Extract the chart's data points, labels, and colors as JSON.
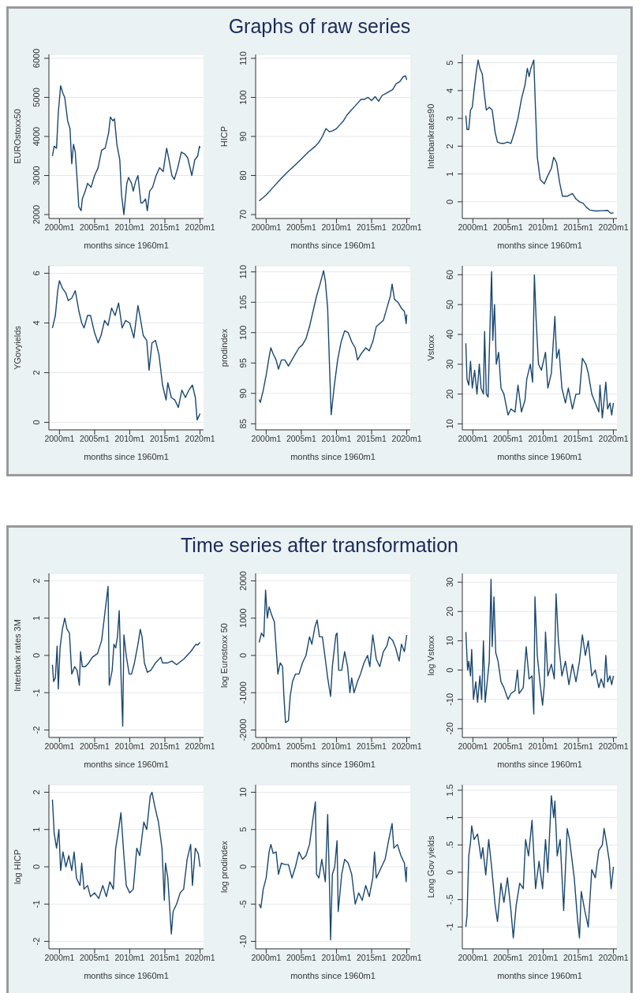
{
  "chart_data": [
    {
      "type": "line",
      "xlabel": "months since 1960m1",
      "ylabel": "EUROstoxx50",
      "color": "#1a476f",
      "grid": "y",
      "xlim": [
        "1998-07",
        "2020-07"
      ],
      "xticks": [
        {
          "value": "2000-01",
          "label": "2000m1"
        },
        {
          "value": "2005-01",
          "label": "2005m1"
        },
        {
          "value": "2010-01",
          "label": "2010m1"
        },
        {
          "value": "2015-01",
          "label": "2015m1"
        },
        {
          "value": "2020-01",
          "label": "2020m1"
        }
      ],
      "ylim": [
        1900,
        6100
      ],
      "yticks": [
        2000,
        3000,
        4000,
        5000,
        6000
      ],
      "x": [
        "1999-01",
        "1999-04",
        "1999-08",
        "1999-11",
        "2000-03",
        "2000-07",
        "2000-10",
        "2001-03",
        "2001-07",
        "2001-10",
        "2002-01",
        "2002-04",
        "2002-08",
        "2002-10",
        "2003-02",
        "2003-04",
        "2003-09",
        "2004-01",
        "2004-07",
        "2005-01",
        "2005-07",
        "2006-01",
        "2006-07",
        "2007-01",
        "2007-04",
        "2007-08",
        "2007-11",
        "2008-03",
        "2008-08",
        "2008-11",
        "2009-03",
        "2009-08",
        "2009-11",
        "2010-04",
        "2010-07",
        "2010-11",
        "2011-03",
        "2011-08",
        "2011-11",
        "2012-04",
        "2012-07",
        "2012-11",
        "2013-04",
        "2013-10",
        "2014-04",
        "2014-10",
        "2015-04",
        "2015-08",
        "2016-01",
        "2016-05",
        "2016-11",
        "2017-05",
        "2017-11",
        "2018-04",
        "2018-11",
        "2019-04",
        "2019-09",
        "2019-12",
        "2020-01"
      ],
      "values": [
        3500,
        3750,
        3700,
        4600,
        5300,
        5100,
        5000,
        4400,
        4200,
        3300,
        3800,
        3600,
        2700,
        2200,
        2100,
        2400,
        2600,
        2800,
        2700,
        3000,
        3200,
        3650,
        3700,
        4100,
        4500,
        4400,
        4450,
        3800,
        3400,
        2500,
        2000,
        2800,
        2950,
        2800,
        2600,
        2850,
        3000,
        2300,
        2300,
        2400,
        2100,
        2600,
        2700,
        3000,
        3200,
        3100,
        3700,
        3400,
        3000,
        2900,
        3200,
        3600,
        3550,
        3450,
        3000,
        3400,
        3500,
        3750,
        3700
      ]
    },
    {
      "type": "line",
      "title": "Graphs of raw series",
      "xlabel": "months since 1960m1",
      "ylabel": "HICP",
      "color": "#1a476f",
      "grid": "y",
      "xlim": [
        "1998-07",
        "2020-07"
      ],
      "xticks": [
        {
          "value": "2000-01",
          "label": "2000m1"
        },
        {
          "value": "2005-01",
          "label": "2005m1"
        },
        {
          "value": "2010-01",
          "label": "2010m1"
        },
        {
          "value": "2015-01",
          "label": "2015m1"
        },
        {
          "value": "2020-01",
          "label": "2020m1"
        }
      ],
      "ylim": [
        69,
        111
      ],
      "yticks": [
        70,
        80,
        90,
        100,
        110
      ],
      "x": [
        "1999-01",
        "2000-01",
        "2001-01",
        "2002-01",
        "2003-01",
        "2004-01",
        "2005-01",
        "2006-01",
        "2007-01",
        "2007-07",
        "2008-01",
        "2008-07",
        "2009-01",
        "2009-07",
        "2010-01",
        "2010-07",
        "2011-01",
        "2011-07",
        "2012-01",
        "2012-07",
        "2013-01",
        "2013-07",
        "2014-01",
        "2014-07",
        "2015-01",
        "2015-07",
        "2016-01",
        "2016-07",
        "2017-01",
        "2017-07",
        "2018-01",
        "2018-07",
        "2019-01",
        "2019-07",
        "2019-11",
        "2020-01"
      ],
      "values": [
        73.5,
        75,
        77,
        79,
        80.8,
        82.5,
        84.2,
        86,
        87.5,
        88.5,
        90,
        92,
        91.2,
        91.5,
        92,
        93,
        94,
        95.5,
        96.5,
        97.5,
        98.5,
        99.5,
        99.5,
        100,
        99.2,
        100.2,
        99,
        100.5,
        101,
        101.5,
        102,
        103.5,
        104,
        105.3,
        105.5,
        104.5
      ]
    },
    {
      "type": "line",
      "xlabel": "months since 1960m1",
      "ylabel": "Interbankrates90",
      "color": "#1a476f",
      "grid": "y",
      "xlim": [
        "1998-07",
        "2020-07"
      ],
      "xticks": [
        {
          "value": "2000-01",
          "label": "2000m1"
        },
        {
          "value": "2005-01",
          "label": "2005m1"
        },
        {
          "value": "2010-01",
          "label": "2010m1"
        },
        {
          "value": "2015-01",
          "label": "2015m1"
        },
        {
          "value": "2020-01",
          "label": "2020m1"
        }
      ],
      "ylim": [
        -0.6,
        5.3
      ],
      "yticks": [
        0,
        1,
        2,
        3,
        4,
        5
      ],
      "x": [
        "1999-01",
        "1999-03",
        "1999-06",
        "1999-09",
        "1999-12",
        "2000-03",
        "2000-07",
        "2000-10",
        "2001-01",
        "2001-05",
        "2001-09",
        "2001-12",
        "2002-05",
        "2002-10",
        "2003-03",
        "2003-07",
        "2004-01",
        "2004-06",
        "2004-12",
        "2005-06",
        "2005-12",
        "2006-06",
        "2006-12",
        "2007-06",
        "2007-10",
        "2008-01",
        "2008-04",
        "2008-09",
        "2008-12",
        "2009-03",
        "2009-08",
        "2010-03",
        "2010-08",
        "2011-03",
        "2011-07",
        "2011-12",
        "2012-05",
        "2012-10",
        "2013-06",
        "2014-03",
        "2014-09",
        "2015-03",
        "2015-09",
        "2016-03",
        "2016-09",
        "2017-06",
        "2018-06",
        "2019-03",
        "2019-09",
        "2020-01"
      ],
      "values": [
        3.1,
        2.6,
        2.6,
        3.3,
        3.4,
        4,
        4.7,
        5.1,
        4.8,
        4.6,
        3.8,
        3.3,
        3.4,
        3.3,
        2.5,
        2.15,
        2.1,
        2.1,
        2.15,
        2.1,
        2.5,
        3.0,
        3.7,
        4.2,
        4.8,
        4.5,
        4.8,
        5.1,
        3.3,
        1.6,
        0.8,
        0.65,
        0.9,
        1.2,
        1.6,
        1.4,
        0.7,
        0.2,
        0.2,
        0.3,
        0.1,
        0.0,
        -0.05,
        -0.2,
        -0.3,
        -0.33,
        -0.32,
        -0.31,
        -0.42,
        -0.39
      ]
    },
    {
      "type": "line",
      "xlabel": "months since 1960m1",
      "ylabel": "YGovyields",
      "color": "#1a476f",
      "grid": "y",
      "xlim": [
        "1998-07",
        "2020-07"
      ],
      "xticks": [
        {
          "value": "2000-01",
          "label": "2000m1"
        },
        {
          "value": "2005-01",
          "label": "2005m1"
        },
        {
          "value": "2010-01",
          "label": "2010m1"
        },
        {
          "value": "2015-01",
          "label": "2015m1"
        },
        {
          "value": "2020-01",
          "label": "2020m1"
        }
      ],
      "ylim": [
        -0.3,
        6.3
      ],
      "yticks": [
        0,
        2,
        4,
        6
      ],
      "x": [
        "1999-01",
        "1999-06",
        "1999-10",
        "2000-01",
        "2000-06",
        "2000-12",
        "2001-04",
        "2001-10",
        "2002-04",
        "2002-10",
        "2003-03",
        "2003-07",
        "2004-01",
        "2004-06",
        "2005-01",
        "2005-07",
        "2005-12",
        "2006-06",
        "2006-12",
        "2007-06",
        "2007-12",
        "2008-06",
        "2008-12",
        "2009-06",
        "2010-01",
        "2010-08",
        "2011-03",
        "2011-07",
        "2011-12",
        "2012-06",
        "2012-10",
        "2013-03",
        "2013-09",
        "2014-03",
        "2014-09",
        "2015-03",
        "2015-06",
        "2015-12",
        "2016-06",
        "2016-12",
        "2017-06",
        "2017-12",
        "2018-06",
        "2018-12",
        "2019-05",
        "2019-08",
        "2019-12",
        "2020-01"
      ],
      "values": [
        3.8,
        4.3,
        5.3,
        5.7,
        5.4,
        5.2,
        4.9,
        5.0,
        5.3,
        4.5,
        4.0,
        3.8,
        4.3,
        4.3,
        3.6,
        3.2,
        3.5,
        4.1,
        3.9,
        4.6,
        4.3,
        4.8,
        3.8,
        4.1,
        4.0,
        3.4,
        4.7,
        4.2,
        3.5,
        3.3,
        2.1,
        3.2,
        3.3,
        2.7,
        1.5,
        0.9,
        1.6,
        1.0,
        0.9,
        0.6,
        1.3,
        1.0,
        1.3,
        1.5,
        1.0,
        0.1,
        0.3,
        0.35
      ]
    },
    {
      "type": "line",
      "xlabel": "months since 1960m1",
      "ylabel": "prodindex",
      "color": "#1a476f",
      "grid": "y",
      "xlim": [
        "1998-07",
        "2020-07"
      ],
      "xticks": [
        {
          "value": "2000-01",
          "label": "2000m1"
        },
        {
          "value": "2005-01",
          "label": "2005m1"
        },
        {
          "value": "2010-01",
          "label": "2010m1"
        },
        {
          "value": "2015-01",
          "label": "2015m1"
        },
        {
          "value": "2020-01",
          "label": "2020m1"
        }
      ],
      "ylim": [
        84,
        111
      ],
      "yticks": [
        85,
        90,
        95,
        100,
        105,
        110
      ],
      "x": [
        "1999-01",
        "1999-03",
        "1999-08",
        "2000-01",
        "2000-06",
        "2000-09",
        "2001-01",
        "2001-06",
        "2001-10",
        "2002-03",
        "2002-09",
        "2003-03",
        "2003-09",
        "2004-03",
        "2004-09",
        "2005-03",
        "2005-09",
        "2006-03",
        "2006-09",
        "2007-03",
        "2007-09",
        "2008-03",
        "2008-06",
        "2008-10",
        "2009-01",
        "2009-04",
        "2009-09",
        "2010-03",
        "2010-09",
        "2011-03",
        "2011-09",
        "2012-03",
        "2012-09",
        "2013-01",
        "2013-07",
        "2014-03",
        "2014-09",
        "2015-03",
        "2015-09",
        "2016-03",
        "2016-09",
        "2017-03",
        "2017-09",
        "2017-12",
        "2018-04",
        "2018-10",
        "2019-04",
        "2019-09",
        "2019-12",
        "2020-01"
      ],
      "values": [
        89,
        88.5,
        90.5,
        93,
        96,
        97.5,
        96.5,
        95.5,
        94,
        95.5,
        95.5,
        94.5,
        95.5,
        96.5,
        97.5,
        98,
        99,
        101,
        103.5,
        106,
        108,
        110.2,
        108.5,
        104,
        95,
        86.5,
        91,
        95.5,
        98.5,
        100.3,
        100,
        98.5,
        97.5,
        95.5,
        96.5,
        97.5,
        97,
        98.5,
        101,
        101.5,
        102,
        104,
        106,
        108,
        105.5,
        105,
        104,
        103.5,
        101.5,
        103
      ]
    },
    {
      "type": "line",
      "xlabel": "months since 1960m1",
      "ylabel": "Vstoxx",
      "color": "#1a476f",
      "grid": "y",
      "xlim": [
        "1998-07",
        "2020-07"
      ],
      "xticks": [
        {
          "value": "2000-01",
          "label": "2000m1"
        },
        {
          "value": "2005-01",
          "label": "2005m1"
        },
        {
          "value": "2010-01",
          "label": "2010m1"
        },
        {
          "value": "2015-01",
          "label": "2015m1"
        },
        {
          "value": "2020-01",
          "label": "2020m1"
        }
      ],
      "ylim": [
        8,
        63
      ],
      "yticks": [
        10,
        20,
        30,
        40,
        50,
        60
      ],
      "x": [
        "1999-01",
        "1999-03",
        "1999-06",
        "1999-09",
        "1999-12",
        "2000-04",
        "2000-08",
        "2000-12",
        "2001-03",
        "2001-07",
        "2001-09",
        "2001-12",
        "2002-03",
        "2002-07",
        "2002-09",
        "2002-11",
        "2003-02",
        "2003-05",
        "2003-09",
        "2004-01",
        "2004-06",
        "2005-01",
        "2005-06",
        "2006-01",
        "2006-06",
        "2006-12",
        "2007-06",
        "2007-09",
        "2008-03",
        "2008-07",
        "2008-10",
        "2009-01",
        "2009-05",
        "2009-10",
        "2010-05",
        "2010-09",
        "2011-03",
        "2011-09",
        "2011-12",
        "2012-04",
        "2012-09",
        "2013-03",
        "2013-08",
        "2014-03",
        "2014-09",
        "2015-03",
        "2015-08",
        "2016-02",
        "2016-06",
        "2016-12",
        "2017-06",
        "2017-12",
        "2018-02",
        "2018-06",
        "2018-12",
        "2019-03",
        "2019-07",
        "2019-10",
        "2020-01"
      ],
      "values": [
        37,
        25,
        23,
        31,
        22,
        28,
        20,
        30,
        22,
        20,
        41,
        20,
        19,
        48,
        61,
        38,
        50,
        30,
        34,
        22,
        20,
        13,
        15,
        14,
        23,
        14,
        18,
        25,
        30,
        24,
        60,
        45,
        30,
        28,
        34,
        22,
        27,
        46,
        32,
        35,
        22,
        17,
        22,
        15,
        20,
        20,
        32,
        30,
        27,
        20,
        17,
        14,
        23,
        12,
        24,
        15,
        17,
        13,
        17
      ]
    },
    {
      "type": "line",
      "xlabel": "months since 1960m1",
      "ylabel": "Interbank rates 3M",
      "color": "#1a476f",
      "grid": "y",
      "xlim": [
        "1998-07",
        "2020-07"
      ],
      "xticks": [
        {
          "value": "2000-01",
          "label": "2000m1"
        },
        {
          "value": "2005-01",
          "label": "2005m1"
        },
        {
          "value": "2010-01",
          "label": "2010m1"
        },
        {
          "value": "2015-01",
          "label": "2015m1"
        },
        {
          "value": "2020-01",
          "label": "2020m1"
        }
      ],
      "ylim": [
        -2.2,
        2.2
      ],
      "yticks": [
        -2,
        -1,
        0,
        1,
        2
      ],
      "x": [
        "1999-01",
        "1999-03",
        "1999-06",
        "1999-09",
        "1999-11",
        "2000-02",
        "2000-06",
        "2000-10",
        "2001-02",
        "2001-06",
        "2001-10",
        "2002-03",
        "2002-07",
        "2002-11",
        "2003-01",
        "2003-04",
        "2003-09",
        "2004-03",
        "2004-09",
        "2005-06",
        "2006-01",
        "2006-07",
        "2006-12",
        "2007-02",
        "2007-07",
        "2007-10",
        "2008-01",
        "2008-04",
        "2008-07",
        "2008-10",
        "2009-01",
        "2009-03",
        "2009-07",
        "2009-12",
        "2010-04",
        "2010-09",
        "2011-03",
        "2011-07",
        "2011-10",
        "2012-02",
        "2012-07",
        "2013-01",
        "2013-09",
        "2014-06",
        "2014-09",
        "2015-06",
        "2016-01",
        "2016-09",
        "2017-09",
        "2018-09",
        "2019-06",
        "2019-09",
        "2020-01"
      ],
      "values": [
        -0.25,
        -0.7,
        -0.6,
        0.25,
        -0.9,
        0.2,
        0.7,
        1.0,
        0.7,
        0.6,
        -0.5,
        -0.3,
        -0.4,
        -0.8,
        0.1,
        -0.3,
        -0.3,
        -0.2,
        -0.05,
        0.05,
        0.4,
        1.2,
        1.85,
        -0.8,
        -0.4,
        0.3,
        0.2,
        0.5,
        1.2,
        -0.5,
        -1.9,
        0.55,
        0.0,
        -0.5,
        -0.5,
        -0.2,
        0.3,
        0.7,
        0.5,
        -0.2,
        -0.45,
        -0.4,
        -0.2,
        -0.05,
        -0.2,
        -0.2,
        -0.15,
        -0.25,
        -0.1,
        0.1,
        0.3,
        0.28,
        0.35
      ]
    },
    {
      "type": "line",
      "title": "Time series after transformation",
      "xlabel": "months since 1960m1",
      "ylabel": "log Eurostoxx 50",
      "color": "#1a476f",
      "grid": "y",
      "xlim": [
        "1998-07",
        "2020-07"
      ],
      "xticks": [
        {
          "value": "2000-01",
          "label": "2000m1"
        },
        {
          "value": "2005-01",
          "label": "2005m1"
        },
        {
          "value": "2010-01",
          "label": "2010m1"
        },
        {
          "value": "2015-01",
          "label": "2015m1"
        },
        {
          "value": "2020-01",
          "label": "2020m1"
        }
      ],
      "ylim": [
        -2200,
        2200
      ],
      "yticks": [
        -2000,
        -1000,
        0,
        1000,
        2000
      ],
      "x": [
        "1999-01",
        "1999-05",
        "1999-09",
        "1999-12",
        "2000-03",
        "2000-06",
        "2000-10",
        "2001-03",
        "2001-09",
        "2002-01",
        "2002-05",
        "2002-07",
        "2002-10",
        "2003-03",
        "2003-06",
        "2003-10",
        "2004-03",
        "2004-09",
        "2005-03",
        "2005-09",
        "2006-03",
        "2006-07",
        "2006-12",
        "2007-04",
        "2007-08",
        "2008-01",
        "2008-06",
        "2008-10",
        "2009-03",
        "2009-06",
        "2009-12",
        "2010-02",
        "2010-05",
        "2010-10",
        "2011-03",
        "2011-08",
        "2011-12",
        "2012-03",
        "2012-07",
        "2013-01",
        "2013-06",
        "2013-12",
        "2014-06",
        "2014-10",
        "2015-03",
        "2015-09",
        "2016-03",
        "2016-09",
        "2017-03",
        "2017-07",
        "2018-01",
        "2018-06",
        "2018-12",
        "2019-04",
        "2019-09",
        "2020-01"
      ],
      "values": [
        350,
        600,
        500,
        1750,
        1000,
        1300,
        1100,
        900,
        -500,
        -200,
        -300,
        -1000,
        -1800,
        -1750,
        -1100,
        -700,
        -500,
        -500,
        -200,
        0,
        500,
        300,
        750,
        950,
        500,
        500,
        -100,
        -600,
        -1100,
        -300,
        550,
        600,
        -400,
        -400,
        100,
        -300,
        -1000,
        -600,
        -1000,
        -700,
        -500,
        -200,
        0,
        -300,
        550,
        -100,
        -300,
        100,
        250,
        500,
        400,
        200,
        -150,
        300,
        100,
        550
      ]
    },
    {
      "type": "line",
      "xlabel": "months since 1960m1",
      "ylabel": "log Vstoxx",
      "color": "#1a476f",
      "grid": "y",
      "xlim": [
        "1998-07",
        "2020-07"
      ],
      "xticks": [
        {
          "value": "2000-01",
          "label": "2000m1"
        },
        {
          "value": "2005-01",
          "label": "2005m1"
        },
        {
          "value": "2010-01",
          "label": "2010m1"
        },
        {
          "value": "2015-01",
          "label": "2015m1"
        },
        {
          "value": "2020-01",
          "label": "2020m1"
        }
      ],
      "ylim": [
        -23,
        33
      ],
      "yticks": [
        -20,
        -10,
        0,
        10,
        20,
        30
      ],
      "x": [
        "1999-01",
        "1999-04",
        "1999-06",
        "1999-09",
        "1999-11",
        "2000-02",
        "2000-06",
        "2000-09",
        "2001-01",
        "2001-04",
        "2001-07",
        "2001-10",
        "2002-02",
        "2002-05",
        "2002-08",
        "2002-10",
        "2003-01",
        "2003-04",
        "2003-08",
        "2004-01",
        "2004-06",
        "2005-01",
        "2005-06",
        "2006-01",
        "2006-05",
        "2006-08",
        "2007-03",
        "2007-08",
        "2008-01",
        "2008-06",
        "2008-09",
        "2008-11",
        "2009-03",
        "2009-08",
        "2009-12",
        "2010-03",
        "2010-05",
        "2010-09",
        "2011-03",
        "2011-08",
        "2011-11",
        "2012-03",
        "2012-09",
        "2013-03",
        "2013-09",
        "2014-03",
        "2014-09",
        "2015-03",
        "2015-08",
        "2016-01",
        "2016-06",
        "2016-12",
        "2017-06",
        "2017-12",
        "2018-04",
        "2018-09",
        "2018-12",
        "2019-03",
        "2019-07",
        "2019-10",
        "2020-01"
      ],
      "values": [
        13,
        0,
        3,
        -2,
        7,
        -10,
        -4,
        -11,
        -2,
        -10,
        10,
        -11,
        -3,
        3,
        31,
        8,
        25,
        6,
        3,
        -4,
        -6,
        -10,
        -8,
        -7,
        0,
        -8,
        -6,
        8,
        -3,
        -2,
        -15,
        25,
        5,
        -5,
        -12,
        -5,
        13,
        -2,
        2,
        -3,
        26,
        10,
        -2,
        3,
        -5,
        2,
        -4,
        3,
        12,
        5,
        10,
        -2,
        0,
        -6,
        -3,
        -6,
        5,
        -4,
        -2,
        -5,
        -2
      ]
    },
    {
      "type": "line",
      "xlabel": "months since 1960m1",
      "ylabel": "log HICP",
      "color": "#1a476f",
      "grid": "y",
      "xlim": [
        "1998-07",
        "2020-07"
      ],
      "xticks": [
        {
          "value": "2000-01",
          "label": "2000m1"
        },
        {
          "value": "2005-01",
          "label": "2005m1"
        },
        {
          "value": "2010-01",
          "label": "2010m1"
        },
        {
          "value": "2015-01",
          "label": "2015m1"
        },
        {
          "value": "2020-01",
          "label": "2020m1"
        }
      ],
      "ylim": [
        -2.2,
        2.2
      ],
      "yticks": [
        -2,
        -1,
        0,
        1,
        2
      ],
      "x": [
        "1999-01",
        "1999-04",
        "1999-08",
        "1999-12",
        "2000-03",
        "2000-07",
        "2000-12",
        "2001-05",
        "2001-10",
        "2002-02",
        "2002-06",
        "2002-12",
        "2003-03",
        "2003-07",
        "2004-01",
        "2004-06",
        "2005-01",
        "2005-08",
        "2006-03",
        "2006-09",
        "2007-03",
        "2007-09",
        "2008-01",
        "2008-06",
        "2008-10",
        "2009-03",
        "2009-07",
        "2010-01",
        "2010-07",
        "2011-01",
        "2011-06",
        "2012-01",
        "2012-06",
        "2012-12",
        "2013-03",
        "2013-08",
        "2014-02",
        "2014-08",
        "2014-12",
        "2015-02",
        "2015-06",
        "2015-12",
        "2016-03",
        "2016-09",
        "2017-03",
        "2017-09",
        "2018-03",
        "2018-09",
        "2018-12",
        "2019-05",
        "2019-10",
        "2020-01"
      ],
      "values": [
        1.8,
        0.9,
        0.5,
        1.0,
        -0.1,
        0.4,
        0.0,
        0.3,
        -0.1,
        0.4,
        -0.3,
        -0.5,
        0.1,
        -0.6,
        -0.5,
        -0.8,
        -0.7,
        -0.85,
        -0.5,
        -0.8,
        -0.4,
        -0.6,
        0.5,
        1.0,
        1.45,
        0.3,
        -0.5,
        -0.7,
        -0.6,
        0.5,
        0.3,
        1.2,
        1.0,
        1.9,
        2.0,
        1.6,
        1.2,
        0.5,
        -0.9,
        0.1,
        -0.3,
        -1.8,
        -1.2,
        -1.0,
        -0.7,
        -0.6,
        0.2,
        0.6,
        -0.5,
        0.5,
        0.35,
        0.0
      ]
    },
    {
      "type": "line",
      "xlabel": "months since 1960m1",
      "ylabel": "log prodindex",
      "color": "#1a476f",
      "grid": "y",
      "xlim": [
        "1998-07",
        "2020-07"
      ],
      "xticks": [
        {
          "value": "2000-01",
          "label": "2000m1"
        },
        {
          "value": "2005-01",
          "label": "2005m1"
        },
        {
          "value": "2010-01",
          "label": "2010m1"
        },
        {
          "value": "2015-01",
          "label": "2015m1"
        },
        {
          "value": "2020-01",
          "label": "2020m1"
        }
      ],
      "ylim": [
        -11,
        11
      ],
      "yticks": [
        -10,
        -5,
        0,
        5,
        10
      ],
      "x": [
        "1999-01",
        "1999-04",
        "1999-08",
        "2000-01",
        "2000-06",
        "2000-09",
        "2001-01",
        "2001-06",
        "2001-10",
        "2002-03",
        "2002-09",
        "2003-03",
        "2003-09",
        "2004-03",
        "2004-09",
        "2005-03",
        "2005-09",
        "2006-03",
        "2006-09",
        "2007-01",
        "2007-03",
        "2007-07",
        "2007-12",
        "2008-06",
        "2008-10",
        "2009-01",
        "2009-03",
        "2009-06",
        "2009-10",
        "2010-02",
        "2010-04",
        "2010-10",
        "2011-03",
        "2011-09",
        "2012-03",
        "2012-09",
        "2013-03",
        "2013-09",
        "2014-03",
        "2014-09",
        "2015-03",
        "2015-06",
        "2015-09",
        "2016-06",
        "2016-12",
        "2017-06",
        "2017-12",
        "2018-03",
        "2018-09",
        "2019-03",
        "2019-09",
        "2019-12",
        "2020-01"
      ],
      "values": [
        -5,
        -5.5,
        -3,
        -1.5,
        2,
        3,
        1.8,
        2,
        -1,
        0.5,
        0.3,
        0.3,
        -1.5,
        0,
        2,
        1,
        1.5,
        3,
        6.5,
        8.7,
        -1,
        -1.5,
        1,
        -2,
        7,
        -2,
        -9.8,
        -1,
        0,
        3.5,
        -6,
        -1,
        1,
        0.5,
        -1,
        -5,
        -3.5,
        -4.5,
        -2.5,
        -4,
        -1.5,
        2,
        -1.5,
        0,
        1,
        3.5,
        5.8,
        2.5,
        3,
        1.5,
        0.5,
        -2,
        0
      ]
    },
    {
      "type": "line",
      "xlabel": "months since 1960m1",
      "ylabel": "Long Gov yields",
      "color": "#1a476f",
      "grid": "y",
      "xlim": [
        "1998-07",
        "2020-07"
      ],
      "xticks": [
        {
          "value": "2000-01",
          "label": "2000m1"
        },
        {
          "value": "2005-01",
          "label": "2005m1"
        },
        {
          "value": "2010-01",
          "label": "2010m1"
        },
        {
          "value": "2015-01",
          "label": "2015m1"
        },
        {
          "value": "2020-01",
          "label": "2020m1"
        }
      ],
      "ylim": [
        -1.4,
        1.6
      ],
      "yticks": [
        -1,
        {
          "value": -0.5,
          "label": "-.5"
        },
        0,
        {
          "value": 0.5,
          "label": ".5"
        },
        1,
        1.5
      ],
      "x": [
        "1999-01",
        "1999-03",
        "1999-06",
        "1999-09",
        "1999-11",
        "2000-03",
        "2000-09",
        "2001-03",
        "2001-06",
        "2001-11",
        "2002-04",
        "2002-09",
        "2003-03",
        "2003-07",
        "2004-01",
        "2004-06",
        "2004-12",
        "2005-06",
        "2005-10",
        "2006-03",
        "2006-09",
        "2007-03",
        "2007-07",
        "2007-12",
        "2008-06",
        "2008-12",
        "2009-06",
        "2009-12",
        "2010-05",
        "2010-09",
        "2011-03",
        "2011-07",
        "2011-09",
        "2012-01",
        "2012-06",
        "2012-12",
        "2013-06",
        "2013-10",
        "2014-06",
        "2014-12",
        "2015-03",
        "2015-06",
        "2015-12",
        "2016-06",
        "2016-12",
        "2017-06",
        "2017-12",
        "2018-06",
        "2018-09",
        "2019-01",
        "2019-06",
        "2019-09",
        "2020-01"
      ],
      "values": [
        -1.0,
        -0.8,
        0.3,
        0.55,
        0.85,
        0.6,
        0.7,
        0.25,
        0.45,
        -0.05,
        0.6,
        0.1,
        -0.6,
        -0.9,
        -0.2,
        -0.55,
        -0.1,
        -0.7,
        -1.2,
        -0.6,
        -0.2,
        -0.3,
        0.6,
        0.3,
        0.95,
        -0.3,
        0.2,
        -0.3,
        0.6,
        0.0,
        1.4,
        1.0,
        1.3,
        0.3,
        0.6,
        -0.7,
        0.8,
        0.6,
        -0.1,
        -0.9,
        -1.2,
        -0.35,
        -0.7,
        -1.0,
        0.05,
        -0.1,
        0.4,
        0.5,
        0.8,
        0.55,
        0.2,
        -0.3,
        0.1
      ]
    }
  ]
}
